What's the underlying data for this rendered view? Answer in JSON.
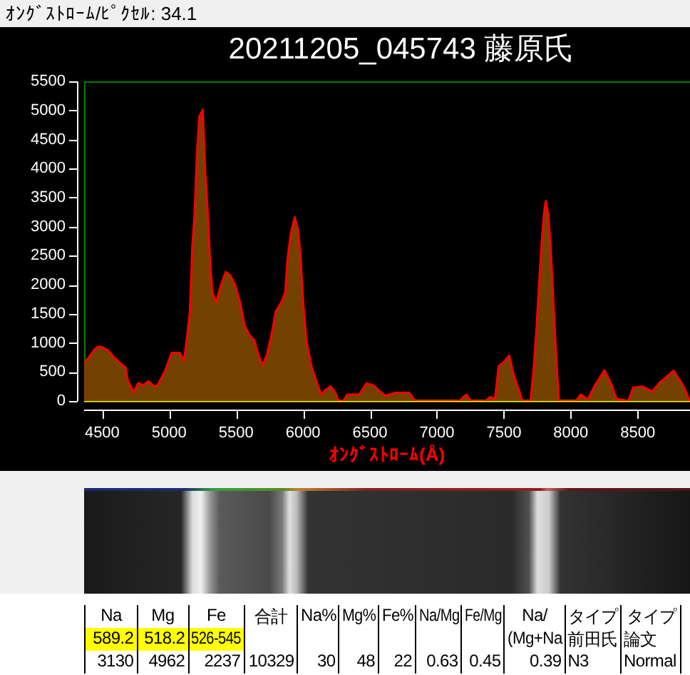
{
  "chart_data": [
    {
      "type": "area",
      "title": "20211205_045743 藤原氏",
      "xlabel": "ｵﾝｸﾞｽﾄﾛｰﾑ(Å)",
      "annotations": [
        "ｵﾝｸﾞｽﾄﾛｰﾑ/ﾋﾟｸｾﾙ: 34.1"
      ],
      "x": [
        4365,
        4425,
        4461,
        4496,
        4543,
        4585,
        4639,
        4674,
        4692,
        4735,
        4770,
        4806,
        4845,
        4888,
        4913,
        4970,
        5020,
        5077,
        5112,
        5137,
        5155,
        5173,
        5190,
        5208,
        5226,
        5251,
        5269,
        5287,
        5304,
        5322,
        5351,
        5386,
        5422,
        5457,
        5493,
        5529,
        5564,
        5600,
        5635,
        5671,
        5699,
        5731,
        5767,
        5796,
        5838,
        5867,
        5884,
        5909,
        5938,
        5963,
        5981,
        6002,
        6027,
        6062,
        6098,
        6134,
        6169,
        6205,
        6240,
        6265,
        6301,
        6330,
        6420,
        6472,
        6525,
        6561,
        6614,
        6685,
        6792,
        6828,
        6845,
        7166,
        7219,
        7255,
        7361,
        7397,
        7433,
        7461,
        7504,
        7539,
        7575,
        7611,
        7636,
        7699,
        7724,
        7746,
        7764,
        7785,
        7799,
        7813,
        7831,
        7849,
        7867,
        7885,
        7910,
        8038,
        8073,
        8127,
        8180,
        8251,
        8305,
        8340,
        8429,
        8465,
        8536,
        8607,
        8661,
        8767,
        8838,
        8888
      ],
      "values": [
        640,
        830,
        930,
        930,
        870,
        760,
        640,
        580,
        350,
        150,
        310,
        270,
        340,
        250,
        270,
        520,
        830,
        830,
        700,
        1170,
        1540,
        2650,
        3220,
        4290,
        4900,
        5010,
        3960,
        3300,
        2480,
        1870,
        1700,
        1990,
        2220,
        2160,
        1990,
        1700,
        1300,
        1130,
        1050,
        760,
        620,
        800,
        1170,
        1540,
        1700,
        1870,
        2440,
        2890,
        3160,
        2940,
        2480,
        1660,
        1010,
        600,
        350,
        110,
        190,
        250,
        150,
        0,
        0,
        110,
        110,
        300,
        270,
        190,
        90,
        140,
        140,
        30,
        0,
        0,
        110,
        0,
        0,
        70,
        30,
        600,
        680,
        780,
        430,
        190,
        0,
        0,
        600,
        1340,
        2070,
        2810,
        3220,
        3440,
        3220,
        2650,
        1830,
        1010,
        0,
        0,
        110,
        30,
        270,
        530,
        270,
        40,
        0,
        230,
        250,
        160,
        310,
        520,
        270,
        0
      ],
      "color": "#ff0000",
      "xlim": [
        4365,
        8890
      ],
      "xticks": [
        4500,
        5000,
        5500,
        6000,
        6500,
        7000,
        7500,
        8000,
        8500
      ],
      "ylim": [
        0,
        5500
      ],
      "yticks": [
        0,
        500,
        1000,
        1500,
        2000,
        2500,
        3000,
        3500,
        4000,
        4500,
        5000,
        5500
      ],
      "ref_lines": [
        {
          "axis": "y",
          "value": 0,
          "color": "#ffff00"
        }
      ]
    },
    {
      "type": "other",
      "categories": [
        "Na",
        "Mg",
        "Fe",
        "合計",
        "Na%",
        "Mg%",
        "Fe%",
        "Na/Mg",
        "Fe/Mg",
        "Na/",
        "タイプ",
        "タイプ"
      ],
      "annotations": [
        "589.2",
        "518.2",
        "526-545",
        "(Mg+Na",
        "前田氏",
        "論文",
        "3130",
        "4962",
        "2237",
        "10329",
        "30",
        "48",
        "22",
        "0.63",
        "0.45",
        "0.39",
        "N3",
        "Normal"
      ]
    }
  ]
}
